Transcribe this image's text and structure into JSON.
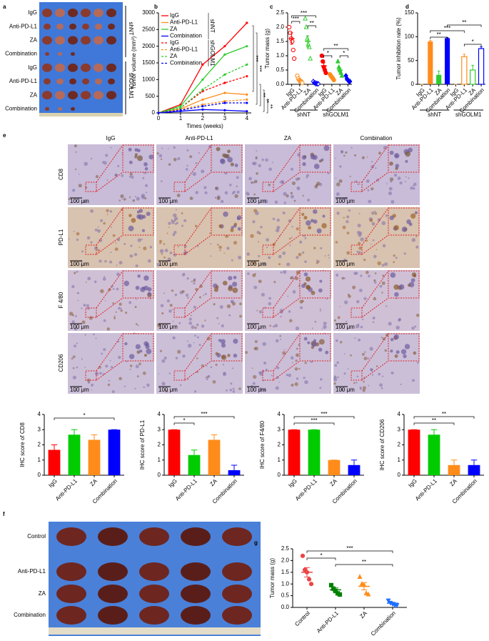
{
  "photos": {
    "a": {
      "label": "a",
      "rows": [
        "IgG",
        "Anti-PD-L1",
        "ZA",
        "Combination",
        "IgG",
        "Anti-PD-L1",
        "ZA",
        "Combination"
      ],
      "groups": [
        "shNT",
        "shGOLM1"
      ]
    },
    "e": {
      "label": "e",
      "columns": [
        "IgG",
        "Anti-PD-L1",
        "ZA",
        "Combination"
      ],
      "rows": [
        "CD8",
        "PD-L1",
        "F 4/80",
        "CD206"
      ],
      "scale": "100 μm"
    },
    "f": {
      "label": "f",
      "rows": [
        "Control",
        "Anti-PD-L1",
        "ZA",
        "Combination"
      ]
    }
  },
  "chart_data": [
    {
      "label": "b",
      "type": "line",
      "ylabel": "Tumor volume (mm³)",
      "xlabel": "Times (weeks)",
      "x": [
        0,
        1,
        2,
        3,
        4
      ],
      "xlim": [
        0,
        4.2
      ],
      "xticks": [
        0,
        1,
        2,
        3,
        4
      ],
      "ylim": [
        0,
        3000
      ],
      "yticks": [
        0,
        500,
        1000,
        1500,
        2000,
        2500,
        3000
      ],
      "legend_groups": [
        "shNT",
        "shGOLM1"
      ],
      "series": [
        {
          "name": "IgG",
          "color": "#ff0000",
          "dash": false,
          "values": [
            0,
            250,
            1450,
            2000,
            2700
          ]
        },
        {
          "name": "Anti-PD-L1",
          "color": "#ff8c1a",
          "dash": false,
          "values": [
            0,
            120,
            400,
            600,
            550
          ]
        },
        {
          "name": "ZA",
          "color": "#2ecc2e",
          "dash": false,
          "values": [
            0,
            200,
            1000,
            1750,
            2000
          ]
        },
        {
          "name": "Combination",
          "color": "#0000ff",
          "dash": false,
          "values": [
            0,
            50,
            100,
            80,
            50
          ]
        },
        {
          "name": "IgG",
          "color": "#ff0000",
          "dash": true,
          "values": [
            0,
            150,
            650,
            900,
            1100
          ]
        },
        {
          "name": "Anti-PD-L1",
          "color": "#ff8c1a",
          "dash": true,
          "values": [
            0,
            100,
            250,
            350,
            400
          ]
        },
        {
          "name": "ZA",
          "color": "#2ecc2e",
          "dash": true,
          "values": [
            0,
            150,
            700,
            1150,
            1450
          ]
        },
        {
          "name": "Combination",
          "color": "#0000ff",
          "dash": true,
          "values": [
            0,
            80,
            200,
            300,
            300
          ]
        }
      ],
      "annotations": [
        "***",
        "***",
        "**",
        "**",
        "**"
      ]
    },
    {
      "label": "c",
      "type": "dot",
      "ylabel": "Tumor mass (g)",
      "ylim": [
        0,
        2.5
      ],
      "yticks": [
        {
          "value": 0,
          "label": "0.0"
        },
        {
          "value": 0.5,
          "label": "0.5"
        },
        {
          "value": 1,
          "label": "1.0"
        },
        {
          "value": 1.5,
          "label": "1.5"
        },
        {
          "value": 2,
          "label": "2.0"
        },
        {
          "value": 2.5,
          "label": "2.5"
        }
      ],
      "categories": [
        "IgG",
        "Anti-PD-L1",
        "ZA",
        "Combination",
        "IgG",
        "Anti-PD-L1",
        "ZA",
        "Combination"
      ],
      "groups": [
        "shNT",
        "shGOLM1"
      ],
      "colors": [
        "#ff0000",
        "#ff8c1a",
        "#2ecc2e",
        "#0000ff",
        "#ff0000",
        "#ff8c1a",
        "#2ecc2e",
        "#0000ff"
      ],
      "markers": [
        "circle",
        "circle",
        "triangle",
        "diamond",
        "circle",
        "circle",
        "triangle",
        "diamond"
      ],
      "filled": [
        false,
        false,
        false,
        false,
        true,
        true,
        true,
        true
      ],
      "points": [
        [
          2.0,
          1.8,
          1.6,
          1.5,
          1.2,
          0.9
        ],
        [
          0.3,
          0.2,
          0.15,
          0.1,
          0.1,
          0.05
        ],
        [
          2.3,
          2.0,
          1.6,
          1.4,
          1.3,
          0.9
        ],
        [
          0.1,
          0.05,
          0.05,
          0.03,
          0.02,
          0.02
        ],
        [
          1.0,
          0.8,
          0.6,
          0.5,
          0.4
        ],
        [
          0.35,
          0.3,
          0.25,
          0.2,
          0.15
        ],
        [
          0.8,
          0.6,
          0.5,
          0.4,
          0.3
        ],
        [
          0.3,
          0.2,
          0.15,
          0.1,
          0.1
        ]
      ],
      "means": [
        1.6,
        0.15,
        1.5,
        0.05,
        0.65,
        0.25,
        0.5,
        0.15
      ],
      "errors": [
        0.2,
        0.05,
        0.2,
        0.02,
        0.1,
        0.04,
        0.08,
        0.04
      ],
      "annotations": [
        "***",
        "**",
        "***",
        "*",
        "*",
        "**"
      ]
    },
    {
      "label": "d",
      "type": "bar",
      "ylabel": "Tumor inhibition rate (%)",
      "ylim": [
        0,
        150
      ],
      "yticks": [
        0,
        50,
        100,
        150
      ],
      "categories": [
        "IgG",
        "Anti-PD-L1",
        "ZA",
        "Combination",
        "IgG",
        "Anti-PD-L1",
        "ZA",
        "Combination"
      ],
      "groups": [
        "shNT",
        "shGOLM1"
      ],
      "colors": [
        "#ff8c1a",
        "#ff8c1a",
        "#2ecc2e",
        "#0000ff",
        "#ff8c1a",
        "#ff8c1a",
        "#2ecc2e",
        "#0000ff"
      ],
      "hollow": [
        false,
        false,
        false,
        false,
        true,
        true,
        true,
        true
      ],
      "values": [
        0,
        90,
        20,
        97,
        0,
        58,
        30,
        75
      ],
      "errors": [
        0,
        2,
        8,
        1,
        0,
        5,
        10,
        4
      ],
      "annotations": [
        "**",
        "***",
        "**",
        "*"
      ]
    },
    {
      "type": "bar",
      "ylabel": "IHC score of CD8",
      "ylim": [
        0,
        4
      ],
      "yticks": [
        0,
        1,
        2,
        3,
        4
      ],
      "categories": [
        "IgG",
        "Anti-PD-L1",
        "ZA",
        "Combination"
      ],
      "colors": [
        "#ff0000",
        "#00cc00",
        "#ff8c1a",
        "#0000ff"
      ],
      "values": [
        1.67,
        2.67,
        2.33,
        3
      ],
      "errors": [
        0.33,
        0.33,
        0.33,
        0
      ],
      "annotations": [
        "*"
      ]
    },
    {
      "type": "bar",
      "ylabel": "IHC score of PD-L1",
      "ylim": [
        0,
        4
      ],
      "yticks": [
        0,
        1,
        2,
        3,
        4
      ],
      "categories": [
        "IgG",
        "Anti-PD-L1",
        "ZA",
        "Combination"
      ],
      "colors": [
        "#ff0000",
        "#00cc00",
        "#ff8c1a",
        "#0000ff"
      ],
      "values": [
        3,
        1.33,
        2.33,
        0.33
      ],
      "errors": [
        0,
        0.33,
        0.33,
        0.33
      ],
      "annotations": [
        "*",
        "***"
      ]
    },
    {
      "type": "bar",
      "ylabel": "IHC score of F4/80",
      "ylim": [
        0,
        4
      ],
      "yticks": [
        0,
        1,
        2,
        3,
        4
      ],
      "categories": [
        "IgG",
        "Anti-PD-L1",
        "ZA",
        "Combination"
      ],
      "colors": [
        "#ff0000",
        "#00cc00",
        "#ff8c1a",
        "#0000ff"
      ],
      "values": [
        3,
        3,
        1,
        0.67
      ],
      "errors": [
        0,
        0,
        0,
        0.33
      ],
      "annotations": [
        "***",
        "***"
      ]
    },
    {
      "type": "bar",
      "ylabel": "IHC score of CD206",
      "ylim": [
        0,
        4
      ],
      "yticks": [
        0,
        1,
        2,
        3,
        4
      ],
      "categories": [
        "IgG",
        "Anti-PD-L1",
        "ZA",
        "Combination"
      ],
      "colors": [
        "#ff0000",
        "#00cc00",
        "#ff8c1a",
        "#0000ff"
      ],
      "values": [
        3,
        2.67,
        0.67,
        0.67
      ],
      "errors": [
        0,
        0.33,
        0.33,
        0.33
      ],
      "annotations": [
        "**",
        "**"
      ]
    },
    {
      "label": "g",
      "type": "dot",
      "ylabel": "Tumor mass (g)",
      "ylim": [
        0,
        2.5
      ],
      "yticks": [
        {
          "value": 0,
          "label": "0.0"
        },
        {
          "value": 0.5,
          "label": "0.5"
        },
        {
          "value": 1,
          "label": "1.0"
        },
        {
          "value": 1.5,
          "label": "1.5"
        },
        {
          "value": 2,
          "label": "2.0"
        },
        {
          "value": 2.5,
          "label": "2.5"
        }
      ],
      "categories": [
        "Control",
        "Anti-PD-L1",
        "ZA",
        "Combination"
      ],
      "colors": [
        "#ee4444",
        "#008000",
        "#ff8c1a",
        "#1e6fff"
      ],
      "markers": [
        "circle",
        "square",
        "triangle",
        "tri-down"
      ],
      "filled": [
        true,
        true,
        true,
        true
      ],
      "points": [
        [
          2.2,
          1.6,
          1.5,
          1.2,
          1.0
        ],
        [
          0.95,
          0.8,
          0.7,
          0.6,
          0.55
        ],
        [
          1.3,
          1.0,
          0.95,
          0.6,
          0.55
        ],
        [
          0.3,
          0.2,
          0.15,
          0.1,
          0.1
        ]
      ],
      "means": [
        1.5,
        0.75,
        0.9,
        0.18
      ],
      "errors": [
        0.2,
        0.08,
        0.15,
        0.04
      ],
      "annotations": [
        "***",
        "*",
        "**"
      ]
    }
  ]
}
